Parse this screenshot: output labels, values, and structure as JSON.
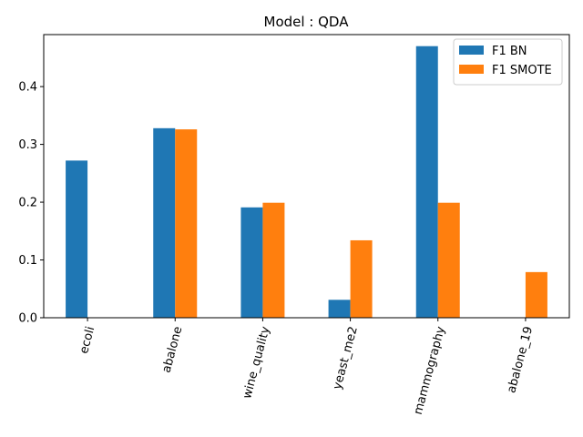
{
  "chart_data": {
    "type": "bar",
    "title": "Model : QDA",
    "xlabel": "",
    "ylabel": "",
    "categories": [
      "ecoli",
      "abalone",
      "wine_quality",
      "yeast_me2",
      "mammography",
      "abalone_19"
    ],
    "series": [
      {
        "name": "F1 BN",
        "color": "#1f77b4",
        "values": [
          0.272,
          0.328,
          0.191,
          0.031,
          0.47,
          0.0
        ]
      },
      {
        "name": "F1 SMOTE",
        "color": "#ff7f0e",
        "values": [
          0.0,
          0.326,
          0.199,
          0.134,
          0.199,
          0.079
        ]
      }
    ],
    "ylim": [
      0,
      0.49
    ],
    "yticks": [
      0.0,
      0.1,
      0.2,
      0.3,
      0.4
    ],
    "ytick_labels": [
      "0.0",
      "0.1",
      "0.2",
      "0.3",
      "0.4"
    ],
    "grid": false,
    "legend_position": "top-right",
    "xtick_rotation": "75"
  }
}
